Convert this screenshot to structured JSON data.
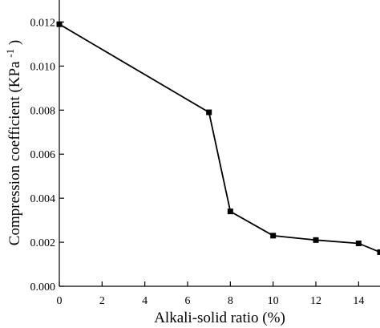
{
  "chart_data": {
    "type": "line",
    "title": "",
    "xlabel": "Alkali-solid ratio (%)",
    "ylabel": {
      "main": "Compression coefficient (KPa",
      "superscript": "-1",
      "close": ")"
    },
    "xlim": [
      0,
      15
    ],
    "ylim": [
      0,
      0.013
    ],
    "x_ticks": [
      0,
      2,
      4,
      6,
      8,
      10,
      12,
      14
    ],
    "y_ticks": [
      0.0,
      0.002,
      0.004,
      0.006,
      0.008,
      0.01,
      0.012
    ],
    "x_tick_labels": [
      "0",
      "2",
      "4",
      "6",
      "8",
      "10",
      "12",
      "14"
    ],
    "y_tick_labels": [
      "0.000",
      "0.002",
      "0.004",
      "0.006",
      "0.008",
      "0.010",
      "0.012"
    ],
    "grid": false,
    "legend": "none",
    "marker": "square",
    "line_color": "#000000",
    "series": [
      {
        "x": [
          0,
          7,
          8,
          10,
          12,
          14,
          15
        ],
        "y": [
          0.0119,
          0.0079,
          0.0034,
          0.0023,
          0.0021,
          0.00195,
          0.00155
        ]
      }
    ]
  }
}
